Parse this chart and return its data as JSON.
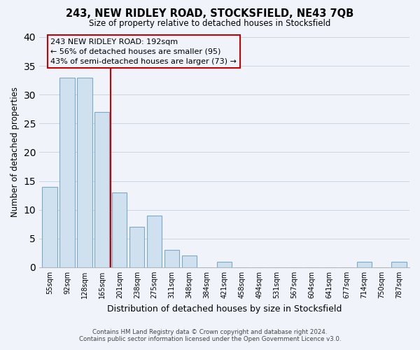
{
  "title": "243, NEW RIDLEY ROAD, STOCKSFIELD, NE43 7QB",
  "subtitle": "Size of property relative to detached houses in Stocksfield",
  "xlabel": "Distribution of detached houses by size in Stocksfield",
  "ylabel": "Number of detached properties",
  "bin_labels": [
    "55sqm",
    "92sqm",
    "128sqm",
    "165sqm",
    "201sqm",
    "238sqm",
    "275sqm",
    "311sqm",
    "348sqm",
    "384sqm",
    "421sqm",
    "458sqm",
    "494sqm",
    "531sqm",
    "567sqm",
    "604sqm",
    "641sqm",
    "677sqm",
    "714sqm",
    "750sqm",
    "787sqm"
  ],
  "bar_heights": [
    14,
    33,
    33,
    27,
    13,
    7,
    9,
    3,
    2,
    0,
    1,
    0,
    0,
    0,
    0,
    0,
    0,
    0,
    1,
    0,
    1
  ],
  "bar_color": "#cfe0ef",
  "bar_edge_color": "#7aaac8",
  "highlight_line_color": "#cc0000",
  "annotation_line1": "243 NEW RIDLEY ROAD: 192sqm",
  "annotation_line2": "← 56% of detached houses are smaller (95)",
  "annotation_line3": "43% of semi-detached houses are larger (73) →",
  "annotation_box_edge_color": "#cc0000",
  "ylim": [
    0,
    40
  ],
  "yticks": [
    0,
    5,
    10,
    15,
    20,
    25,
    30,
    35,
    40
  ],
  "footer_line1": "Contains HM Land Registry data © Crown copyright and database right 2024.",
  "footer_line2": "Contains public sector information licensed under the Open Government Licence v3.0.",
  "bg_color": "#f0f4fa",
  "grid_color": "#c8d4e4",
  "highlight_line_xindex": 3.5
}
